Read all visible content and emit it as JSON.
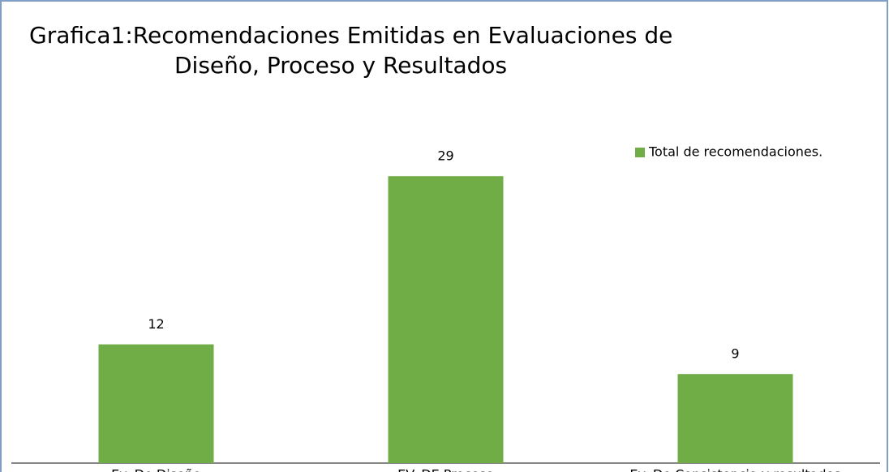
{
  "chart_data": {
    "type": "bar",
    "title": [
      "Grafica1:Recomendaciones Emitidas en Evaluaciones de",
      "Diseño, Proceso y Resultados"
    ],
    "categories": [
      "Ev. De Diseño",
      "EV. DE Proceso",
      "Ev. De Consistencia y resultados"
    ],
    "series": [
      {
        "name": "Total de recomendaciones.",
        "color": "#70ad47",
        "values": [
          12,
          29,
          9
        ]
      }
    ],
    "ylim": [
      0,
      30
    ],
    "legend": "top-right"
  }
}
